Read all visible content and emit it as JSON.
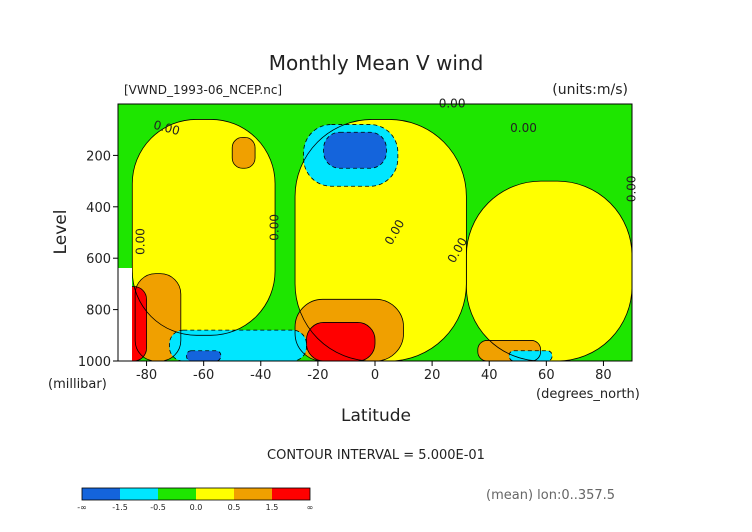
{
  "chart_data": {
    "type": "heatmap",
    "title": "Monthly Mean V wind",
    "file_label": "[VWND_1993-06_NCEP.nc]",
    "units_label": "(units:m/s)",
    "xlabel": "Latitude",
    "x_units": "(degrees_north)",
    "ylabel": "Level",
    "y_units": "(millibar)",
    "xlim": [
      -90,
      90
    ],
    "ylim": [
      1000,
      0
    ],
    "x_ticks": [
      -80,
      -60,
      -40,
      -20,
      0,
      20,
      40,
      60,
      80
    ],
    "y_ticks": [
      200,
      400,
      600,
      800,
      1000
    ],
    "contour_interval_text": "CONTOUR INTERVAL = 5.000E-01",
    "footnote": "(mean) lon:0..357.5",
    "colorbar": {
      "labels": [
        "-∞",
        "-1.5",
        "-0.5",
        "0.0",
        "0.5",
        "1.5",
        "∞"
      ],
      "colors": [
        "#1464dc",
        "#00e6ff",
        "#1ee600",
        "#ffff00",
        "#f0a000",
        "#ff0000"
      ],
      "bins": [
        [
          null,
          -1.5
        ],
        [
          -1.5,
          -0.5
        ],
        [
          -0.5,
          0.0
        ],
        [
          0.0,
          0.5
        ],
        [
          0.5,
          1.5
        ],
        [
          1.5,
          null
        ]
      ]
    },
    "contour_labels": [
      {
        "text": "0.00",
        "lat": -73,
        "lev": 95,
        "rot": 15
      },
      {
        "text": "0.00",
        "lat": -82,
        "lev": 535,
        "rot": -90
      },
      {
        "text": "0.00",
        "lat": -35,
        "lev": 480,
        "rot": -90
      },
      {
        "text": "0.00",
        "lat": 7,
        "lev": 500,
        "rot": -60
      },
      {
        "text": "0.00",
        "lat": 29,
        "lev": 570,
        "rot": -60
      },
      {
        "text": "0.00",
        "lat": 27,
        "lev": 0,
        "rot": 0
      },
      {
        "text": "0.00",
        "lat": 52,
        "lev": 95,
        "rot": 0
      },
      {
        "text": "0.00",
        "lat": 90,
        "lev": 330,
        "rot": -90
      }
    ],
    "regions": [
      {
        "value": -0.3,
        "lat": [
          -90,
          90
        ],
        "lev": [
          0,
          1000
        ],
        "note": "background field"
      },
      {
        "value": 0.2,
        "lat": [
          -85,
          -35
        ],
        "lev": [
          60,
          900
        ]
      },
      {
        "value": 0.2,
        "lat": [
          -28,
          32
        ],
        "lev": [
          60,
          1000
        ]
      },
      {
        "value": 0.2,
        "lat": [
          32,
          90
        ],
        "lev": [
          300,
          1000
        ]
      },
      {
        "value": 0.7,
        "lat": [
          -50,
          -42
        ],
        "lev": [
          130,
          250
        ]
      },
      {
        "value": 0.7,
        "lat": [
          -84,
          -68
        ],
        "lev": [
          660,
          1000
        ]
      },
      {
        "value": 0.7,
        "lat": [
          -28,
          10
        ],
        "lev": [
          760,
          1000
        ]
      },
      {
        "value": 0.7,
        "lat": [
          36,
          58
        ],
        "lev": [
          920,
          1000
        ]
      },
      {
        "value": 1.8,
        "lat": [
          -90,
          -80
        ],
        "lev": [
          710,
          1000
        ]
      },
      {
        "value": 1.8,
        "lat": [
          -24,
          0
        ],
        "lev": [
          850,
          1000
        ]
      },
      {
        "value": -1.0,
        "lat": [
          -25,
          8
        ],
        "lev": [
          80,
          320
        ]
      },
      {
        "value": -2.0,
        "lat": [
          -18,
          4
        ],
        "lev": [
          110,
          250
        ]
      },
      {
        "value": -1.0,
        "lat": [
          -72,
          -24
        ],
        "lev": [
          880,
          1000
        ]
      },
      {
        "value": -2.0,
        "lat": [
          -66,
          -54
        ],
        "lev": [
          960,
          1000
        ]
      },
      {
        "value": -1.0,
        "lat": [
          47,
          62
        ],
        "lev": [
          960,
          1000
        ]
      }
    ]
  }
}
